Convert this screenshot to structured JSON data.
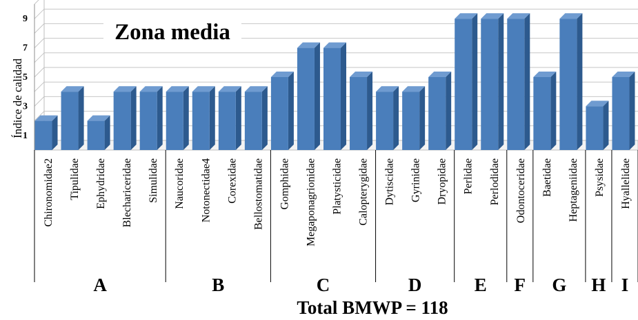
{
  "chart_data": {
    "type": "bar",
    "title": "Zona media",
    "ylabel": "Índice de calidad",
    "xlabel": "Total BMWP = 118",
    "ylim": [
      0,
      10
    ],
    "yticks": [
      "1",
      "3",
      "5",
      "7",
      "9"
    ],
    "grid": true,
    "bar_color": "#4a7ebb",
    "categories": [
      "Chironomidae2",
      "Tipulidae",
      "Ephydridae",
      "Blechariceridae",
      "Simulidae",
      "Naucoridae",
      "Notonectidae4",
      "Corexidae",
      "Bellostomatidae",
      "Gomphidae",
      "Megaponagrionidae",
      "Platysticidae",
      "Calopterygidae",
      "Dytiscidae",
      "Gyrinidae",
      "Dryopidae",
      "Perlidae",
      "Perlodidae",
      "Odontoceridae",
      "Baetidae",
      "Heptageniidae",
      "Psysidae",
      "Hyallelidae"
    ],
    "values": [
      2,
      4,
      2,
      4,
      4,
      4,
      4,
      4,
      4,
      5,
      7,
      7,
      5,
      4,
      4,
      5,
      9,
      9,
      9,
      5,
      9,
      3,
      5
    ],
    "groups": [
      {
        "label": "A",
        "count": 5
      },
      {
        "label": "B",
        "count": 4
      },
      {
        "label": "C",
        "count": 4
      },
      {
        "label": "D",
        "count": 3
      },
      {
        "label": "E",
        "count": 2
      },
      {
        "label": "F",
        "count": 1
      },
      {
        "label": "G",
        "count": 2
      },
      {
        "label": "H",
        "count": 1
      },
      {
        "label": "I",
        "count": 1
      }
    ]
  }
}
